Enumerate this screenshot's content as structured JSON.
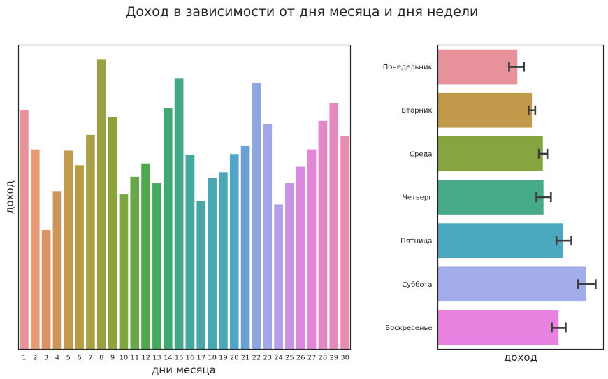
{
  "figure": {
    "title": "Доход в зависимости от дня месяца и дня недели"
  },
  "chart_data": [
    {
      "type": "bar",
      "title": "",
      "xlabel": "дни месяца",
      "ylabel": "доход",
      "ylim": [
        0,
        100
      ],
      "yticks_visible": false,
      "categories": [
        "1",
        "2",
        "3",
        "4",
        "5",
        "6",
        "7",
        "8",
        "9",
        "10",
        "11",
        "12",
        "13",
        "14",
        "15",
        "16",
        "17",
        "18",
        "19",
        "20",
        "21",
        "22",
        "23",
        "24",
        "25",
        "26",
        "27",
        "28",
        "29",
        "30"
      ],
      "values": [
        78.5,
        65.7,
        39.2,
        52.0,
        65.3,
        60.5,
        70.5,
        95.2,
        76.3,
        50.9,
        56.7,
        61.1,
        54.7,
        79.2,
        89.0,
        63.8,
        48.7,
        56.3,
        58.2,
        64.2,
        66.8,
        87.6,
        74.1,
        47.6,
        54.7,
        60.0,
        65.7,
        75.1,
        80.8,
        70.0
      ],
      "colors": [
        "#e8929b",
        "#e89a77",
        "#dc9264",
        "#cd965a",
        "#c19a4f",
        "#b69c45",
        "#a89e44",
        "#9ba041",
        "#8ba33f",
        "#7ba641",
        "#67a948",
        "#4ea84e",
        "#43aa5f",
        "#40a972",
        "#43a88a",
        "#46a79c",
        "#48a6a6",
        "#4aa6b1",
        "#4ca6bd",
        "#52a4c9",
        "#6aa0d4",
        "#8ca6e2",
        "#a2a7e8",
        "#b59ee9",
        "#c892e6",
        "#d88ae0",
        "#e185d6",
        "#e486c8",
        "#e688bb",
        "#e98cae"
      ]
    },
    {
      "type": "bar",
      "orientation": "horizontal",
      "title": "",
      "xlabel": "доход",
      "ylabel": "",
      "xlim": [
        0,
        100
      ],
      "xticks_visible": false,
      "categories": [
        "Понедельник",
        "Вторник",
        "Среда",
        "Четверг",
        "Пятница",
        "Суббота",
        "Воскресенье"
      ],
      "values": [
        48.0,
        56.8,
        63.4,
        63.8,
        75.6,
        89.6,
        72.9
      ],
      "ci_low": [
        43.0,
        54.8,
        61.0,
        59.5,
        71.6,
        84.6,
        68.8
      ],
      "ci_high": [
        52.0,
        58.8,
        66.1,
        68.3,
        80.6,
        95.3,
        77.2
      ],
      "colors": [
        "#e8929b",
        "#c0994a",
        "#86a43f",
        "#47aa86",
        "#4aa9bf",
        "#a1ace9",
        "#e882e0"
      ]
    }
  ]
}
